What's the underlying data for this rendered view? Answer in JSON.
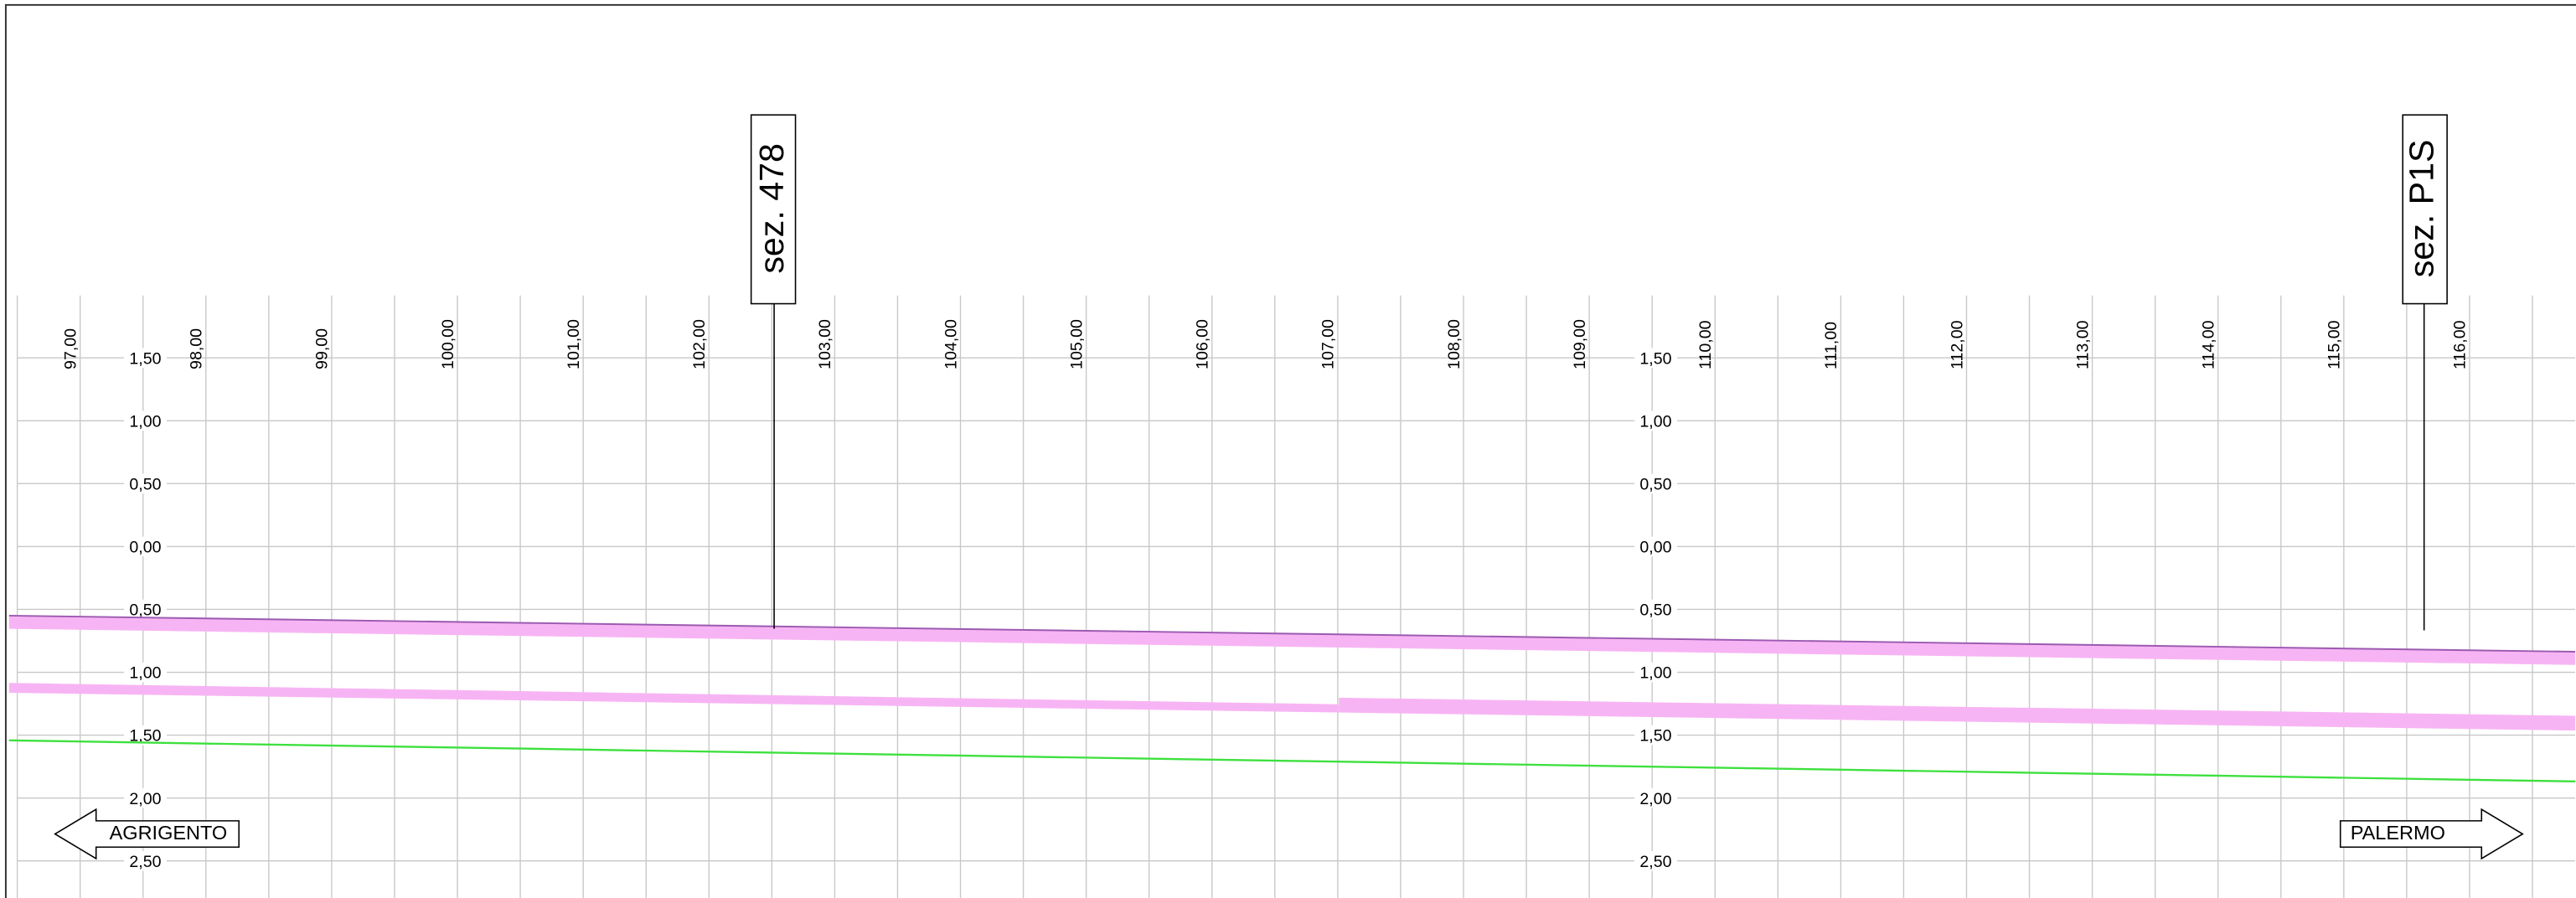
{
  "x_labels": [
    "97,00",
    "98,00",
    "99,00",
    "100,00",
    "101,00",
    "102,00",
    "103,00",
    "104,00",
    "105,00",
    "106,00",
    "107,00",
    "108,00",
    "109,00",
    "110,00",
    "111,00",
    "112,00",
    "113,00",
    "114,00",
    "115,00",
    "116,00"
  ],
  "y_labels": [
    "1,50",
    "1,00",
    "0,50",
    "0,00",
    "0,50",
    "1,00",
    "1,50",
    "2,00",
    "2,50"
  ],
  "sections": [
    "sez. 478",
    "sez. P1S"
  ],
  "directions": {
    "left": "AGRIGENTO",
    "right": "PALERMO"
  }
}
